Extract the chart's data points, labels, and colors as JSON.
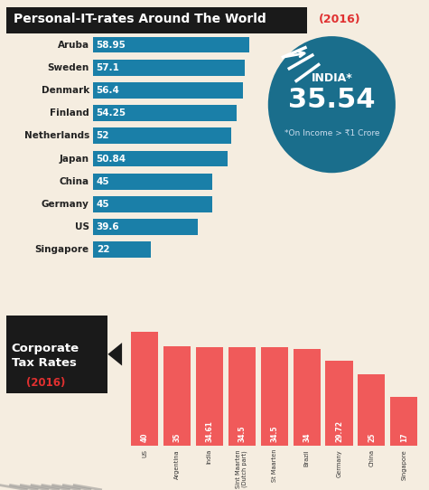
{
  "top_title": "Personal-IT-rates Around The World",
  "top_year": "(2016)",
  "bar_countries": [
    "Aruba",
    "Sweden",
    "Denmark",
    "Finland",
    "Netherlands",
    "Japan",
    "China",
    "Germany",
    "US",
    "Singapore"
  ],
  "bar_values": [
    58.95,
    57.1,
    56.4,
    54.25,
    52,
    50.84,
    45,
    45,
    39.6,
    22
  ],
  "bar_color": "#1a7fa8",
  "bar_labels": [
    "58.95",
    "57.1",
    "56.4",
    "54.25",
    "52",
    "50.84",
    "45",
    "45",
    "39.6",
    "22"
  ],
  "india_value": "35.54",
  "india_note": "*On Income > ₹1 Crore",
  "india_circle_color": "#1a6e8c",
  "bottom_title": "Corporate\nTax Rates",
  "bottom_year": "(2016)",
  "corp_countries": [
    "US",
    "Argentina",
    "India",
    "Sint Maarten\n(Dutch part)",
    "St Maarten",
    "Brazil",
    "Germany",
    "China",
    "Singapore"
  ],
  "corp_values": [
    40,
    35,
    34.61,
    34.5,
    34.5,
    34,
    29.72,
    25,
    17
  ],
  "corp_labels": [
    "40",
    "35",
    "34.61",
    "34.5",
    "34.5",
    "34",
    "29.72",
    "25",
    "17"
  ],
  "corp_bar_color": "#f05a5a",
  "bg_color": "#f5ede0",
  "title_bg_color": "#1a1a1a",
  "title_text_color": "#ffffff",
  "year_color": "#e03030"
}
